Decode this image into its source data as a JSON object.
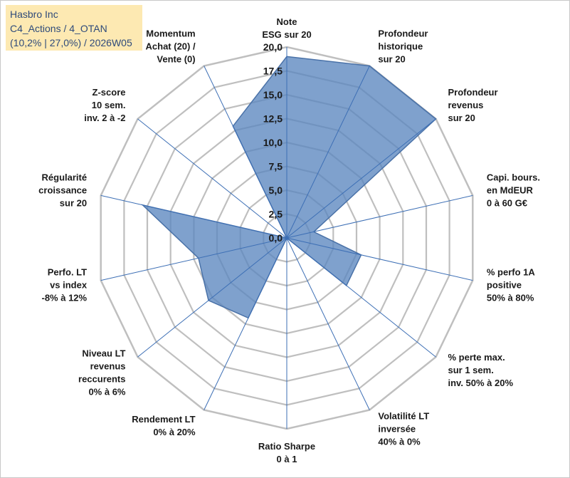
{
  "title": {
    "line1": "Hasbro Inc",
    "line2": "C4_Actions / 4_OTAN",
    "line3": "(10,2% | 27,0%) / 2026W05"
  },
  "colors": {
    "fill": "#5b86bf",
    "stroke": "#4a72a8",
    "grid": "#bfbfbf",
    "spoke": "#3d6fb5",
    "title_bg": "#fde9b2",
    "title_text": "#2e4a7a"
  },
  "chart_data": {
    "type": "radar",
    "rmin": 0,
    "rmax": 20,
    "grid_step": 2.5,
    "tick_labels": [
      "0,0",
      "2,5",
      "5,0",
      "7,5",
      "10,0",
      "12,5",
      "15,0",
      "17,5",
      "20,0"
    ],
    "axes": [
      {
        "label": [
          "Note",
          "ESG sur 20"
        ],
        "value": 19.0
      },
      {
        "label": [
          "Profondeur",
          "historique",
          "sur 20"
        ],
        "value": 20.0
      },
      {
        "label": [
          "Profondeur",
          "revenus",
          "sur 20"
        ],
        "value": 20.0
      },
      {
        "label": [
          "Capi. bours.",
          "en MdEUR",
          "0 à 60 G€"
        ],
        "value": 2.9
      },
      {
        "label": [
          "% perfo 1A",
          "positive",
          "50% à 80%"
        ],
        "value": 8.0
      },
      {
        "label": [
          "% perte max.",
          "sur 1 sem.",
          "inv. 50% à 20%"
        ],
        "value": 8.0
      },
      {
        "label": [
          "Volatilité LT",
          "inversée",
          "40% à 0%"
        ],
        "value": 0.0
      },
      {
        "label": [
          "Ratio Sharpe",
          "0 à 1"
        ],
        "value": 0.0
      },
      {
        "label": [
          "Rendement LT",
          "0% à 20%"
        ],
        "value": 9.3
      },
      {
        "label": [
          "Niveau LT",
          "revenus",
          "reccurents",
          "0% à 6%"
        ],
        "value": 10.5
      },
      {
        "label": [
          "Perfo. LT",
          "vs index",
          "-8% à 12%"
        ],
        "value": 9.5
      },
      {
        "label": [
          "Régularité",
          "croissance",
          "sur 20"
        ],
        "value": 15.5
      },
      {
        "label": [
          "Z-score",
          "10 sem.",
          "inv. 2 à -2"
        ],
        "value": 0.0
      },
      {
        "label": [
          "Momentum",
          "Achat (20) /",
          "Vente (0)"
        ],
        "value": 13.0
      }
    ]
  }
}
